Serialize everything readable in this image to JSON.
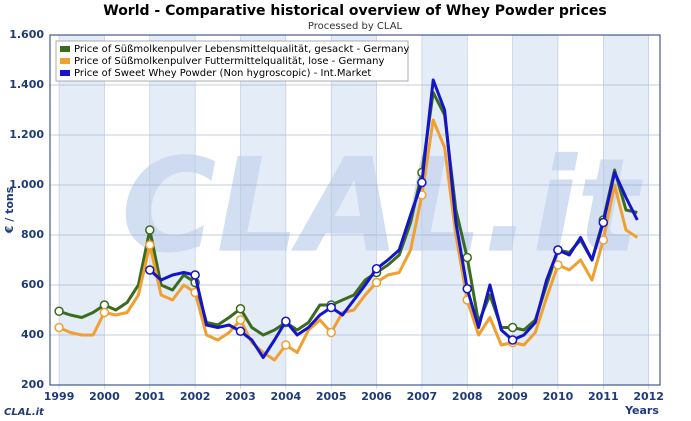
{
  "chart_data": {
    "type": "line",
    "title": "World - Comparative historical overview of Whey Powder prices",
    "subtitle": "Processed by CLAL",
    "y_label": "€ / tons",
    "x_label": "Years",
    "watermark": "CLAL.it",
    "logo": "CLAL.it",
    "x": [
      1999,
      1999.25,
      1999.5,
      1999.75,
      2000,
      2000.25,
      2000.5,
      2000.75,
      2001,
      2001.25,
      2001.5,
      2001.75,
      2002,
      2002.25,
      2002.5,
      2002.75,
      2003,
      2003.25,
      2003.5,
      2003.75,
      2004,
      2004.25,
      2004.5,
      2004.75,
      2005,
      2005.25,
      2005.5,
      2005.75,
      2006,
      2006.25,
      2006.5,
      2006.75,
      2007,
      2007.25,
      2007.5,
      2007.75,
      2008,
      2008.25,
      2008.5,
      2008.75,
      2009,
      2009.25,
      2009.5,
      2009.75,
      2010,
      2010.25,
      2010.5,
      2010.75,
      2011,
      2011.25,
      2011.5,
      2011.75
    ],
    "series": [
      {
        "name": "Price of Süßmolkenpulver Lebensmittelqualität, gesackt - Germany",
        "color": "#3a6b1e",
        "values": [
          495,
          480,
          470,
          490,
          520,
          500,
          530,
          600,
          820,
          600,
          580,
          640,
          610,
          450,
          440,
          470,
          505,
          430,
          400,
          420,
          450,
          420,
          450,
          520,
          520,
          540,
          560,
          620,
          650,
          680,
          720,
          850,
          1050,
          1370,
          1280,
          900,
          710,
          450,
          560,
          430,
          430,
          420,
          460,
          600,
          740,
          730,
          780,
          700,
          860,
          1060,
          900,
          890
        ]
      },
      {
        "name": "Price of Süßmolkenpulver Futtermittelqualität, lose - Germany",
        "color": "#f0a030",
        "values": [
          430,
          410,
          400,
          400,
          490,
          480,
          490,
          560,
          760,
          560,
          540,
          600,
          570,
          400,
          380,
          410,
          460,
          370,
          330,
          300,
          360,
          330,
          420,
          460,
          410,
          490,
          500,
          560,
          610,
          640,
          650,
          740,
          960,
          1260,
          1150,
          800,
          540,
          400,
          470,
          360,
          370,
          360,
          410,
          550,
          680,
          660,
          700,
          620,
          780,
          1000,
          820,
          790
        ]
      },
      {
        "name": "Price of Sweet Whey Powder (Non hygroscopic) - Int.Market",
        "color": "#1414c8",
        "values": [
          null,
          null,
          null,
          null,
          null,
          null,
          null,
          null,
          660,
          620,
          640,
          650,
          640,
          440,
          430,
          440,
          415,
          380,
          310,
          380,
          455,
          400,
          430,
          480,
          510,
          480,
          540,
          600,
          665,
          700,
          740,
          880,
          1010,
          1420,
          1300,
          850,
          585,
          430,
          600,
          420,
          380,
          400,
          450,
          620,
          740,
          720,
          790,
          700,
          850,
          1050,
          950,
          860
        ]
      }
    ],
    "xlim": [
      1998.8,
      2012.25
    ],
    "xticks": [
      1999,
      2000,
      2001,
      2002,
      2003,
      2004,
      2005,
      2006,
      2007,
      2008,
      2009,
      2010,
      2011,
      2012
    ],
    "ylim": [
      200,
      1600
    ],
    "yticks": [
      200,
      400,
      600,
      800,
      {
        "value": 1000,
        "label": "1.000"
      },
      {
        "value": 1200,
        "label": "1.200"
      },
      {
        "value": 1400,
        "label": "1.400"
      },
      {
        "value": 1600,
        "label": "1.600"
      }
    ],
    "grid": true,
    "legend": "top-left"
  }
}
